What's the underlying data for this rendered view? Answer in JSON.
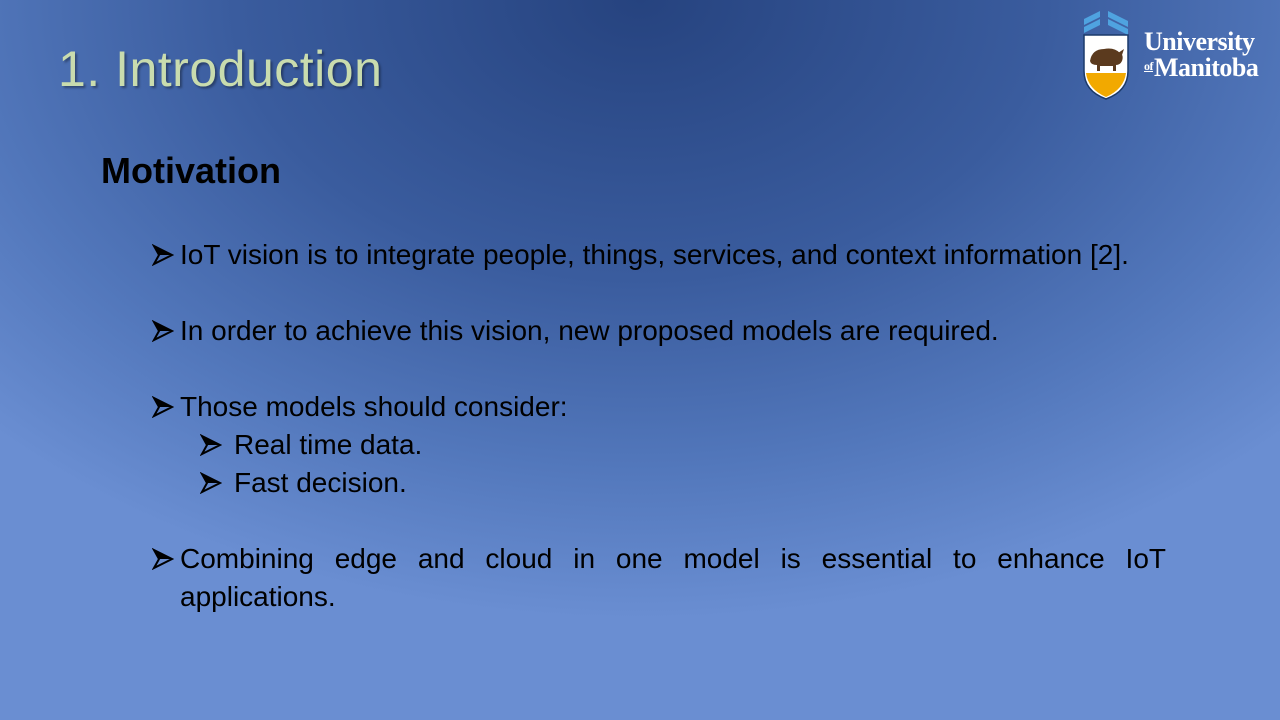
{
  "slide": {
    "title": "1. Introduction",
    "heading": "Motivation"
  },
  "logo": {
    "line1": "University",
    "of": "of",
    "line2": "Manitoba"
  },
  "bullets": [
    {
      "text": "IoT vision is to integrate people, things, services, and context information [2]."
    },
    {
      "text": "In order to achieve this vision, new proposed models are required."
    },
    {
      "text": "Those models should consider:",
      "sub": [
        "Real time data.",
        "Fast decision."
      ]
    },
    {
      "text": "Combining edge and cloud in one model is essential to enhance IoT applications."
    }
  ],
  "colors": {
    "title": "#c9dcae",
    "body_text": "#000000",
    "background_center": "#26437f",
    "background_edge": "#6a8ed2"
  },
  "icons": {
    "bullet": "arrowhead-bullet-icon",
    "logo": "bison-shield-icon"
  }
}
